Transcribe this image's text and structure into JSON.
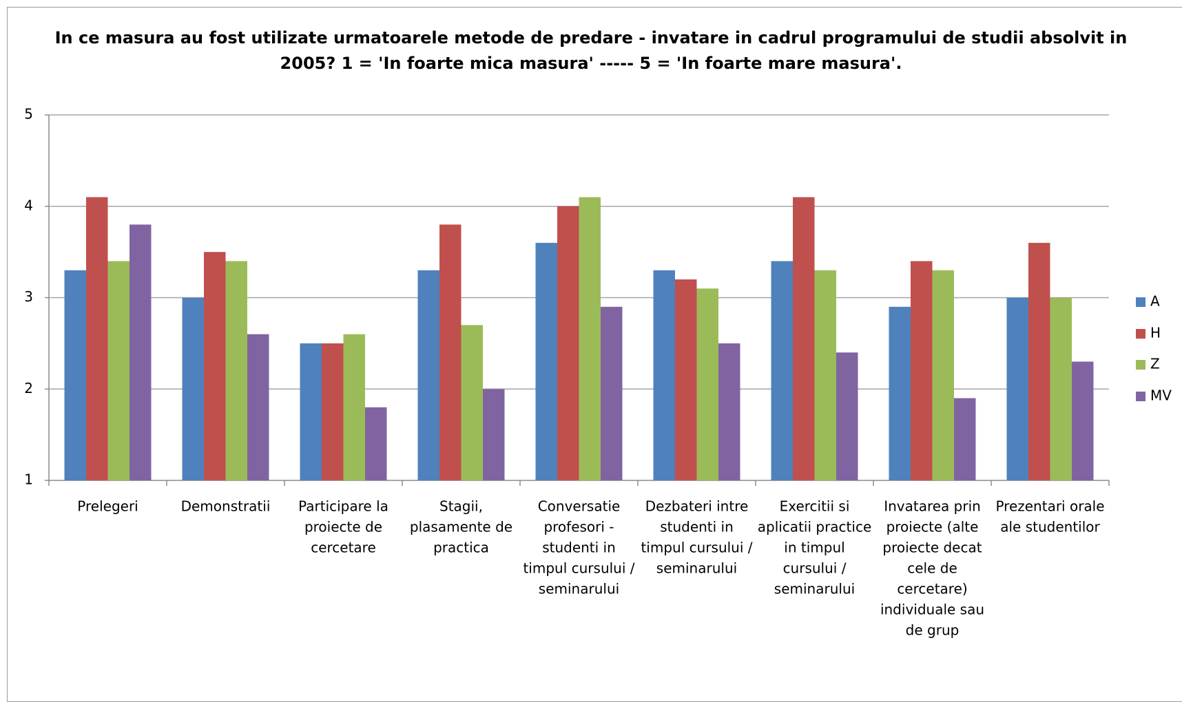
{
  "chart_data": {
    "type": "bar",
    "title_lines": [
      "In ce masura au fost utilizate urmatoarele metode de predare - invatare in cadrul programului de studii absolvit in",
      "2005?  1 = 'In foarte mica masura' -----  5 = 'In foarte mare masura'."
    ],
    "xlabel": "",
    "ylabel": "",
    "ylim": [
      1,
      5
    ],
    "yticks": [
      1,
      2,
      3,
      4,
      5
    ],
    "grid": true,
    "legend_position": "right",
    "categories": [
      "Prelegeri",
      "Demonstratii",
      "Participare la proiecte de cercetare",
      "Stagii, plasamente de practica",
      "Conversatie profesori - studenti in timpul cursului / seminarului",
      "Dezbateri intre studenti in timpul cursului / seminarului",
      "Exercitii si aplicatii practice in timpul cursului / seminarului",
      "Invatarea prin proiecte (alte proiecte decat cele de cercetare) individuale sau de grup",
      "Prezentari orale ale studentilor"
    ],
    "category_label_lines": [
      [
        "Prelegeri"
      ],
      [
        "Demonstratii"
      ],
      [
        "Participare la",
        "proiecte de",
        "cercetare"
      ],
      [
        "Stagii,",
        "plasamente de",
        "practica"
      ],
      [
        "Conversatie",
        "profesori -",
        "studenti in",
        "timpul cursului /",
        "seminarului"
      ],
      [
        "Dezbateri intre",
        "studenti in",
        "timpul cursului /",
        "seminarului"
      ],
      [
        "Exercitii si",
        "aplicatii practice",
        "in timpul",
        "cursului /",
        "seminarului"
      ],
      [
        "Invatarea prin",
        "proiecte (alte",
        "proiecte decat",
        "cele de",
        "cercetare)",
        "individuale sau",
        "de grup"
      ],
      [
        "Prezentari orale",
        "ale studentilor"
      ]
    ],
    "series": [
      {
        "name": "A",
        "color": "#4f81bd",
        "values": [
          3.3,
          3.0,
          2.5,
          3.3,
          3.6,
          3.3,
          3.4,
          2.9,
          3.0
        ]
      },
      {
        "name": "H",
        "color": "#c0504d",
        "values": [
          4.1,
          3.5,
          2.5,
          3.8,
          4.0,
          3.2,
          4.1,
          3.4,
          3.6
        ]
      },
      {
        "name": "Z",
        "color": "#9bbb59",
        "values": [
          3.4,
          3.4,
          2.6,
          2.7,
          4.1,
          3.1,
          3.3,
          3.3,
          3.0
        ]
      },
      {
        "name": "MV",
        "color": "#8064a2",
        "values": [
          3.8,
          2.6,
          1.8,
          2.0,
          2.9,
          2.5,
          2.4,
          1.9,
          2.3
        ]
      }
    ],
    "colors": {
      "gridline": "#a6a6a6",
      "axis": "#8c8c8c",
      "text": "#000000"
    }
  }
}
